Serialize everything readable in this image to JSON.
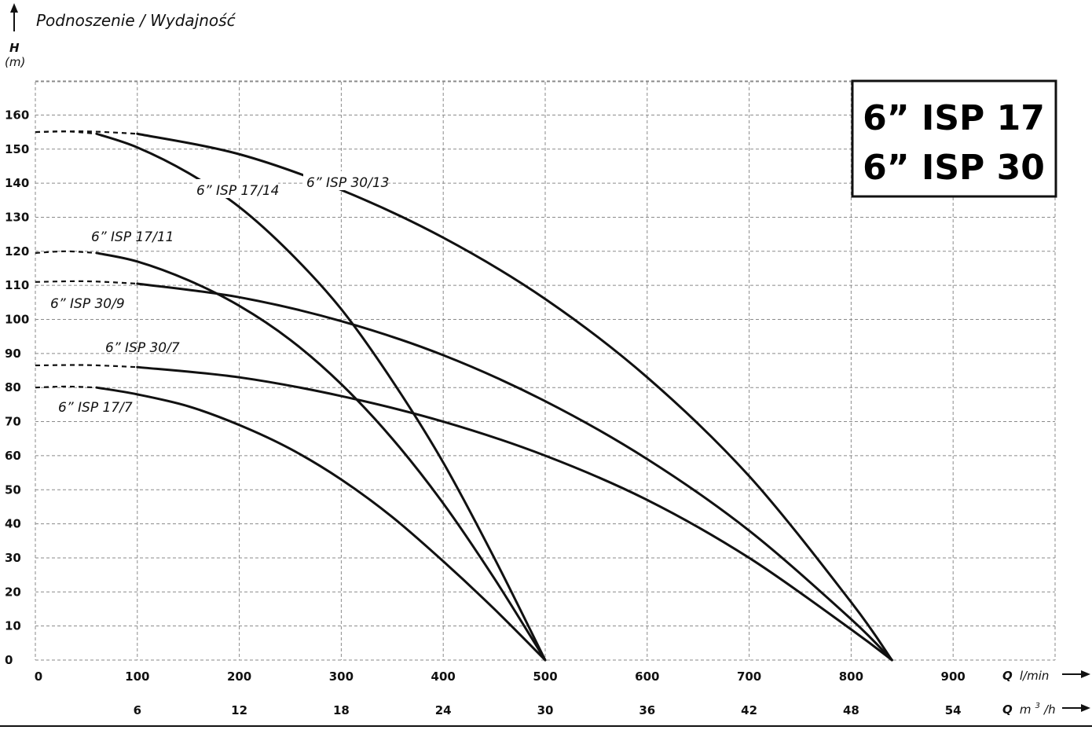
{
  "header": {
    "title": "Podnoszenie / Wydajność",
    "h_symbol": "H",
    "h_unit": "(m)"
  },
  "model_box": {
    "line1": "6” ISP 17",
    "line2": "6” ISP 30"
  },
  "chart_data": {
    "type": "line",
    "title": "Podnoszenie / Wydajność",
    "ylabel": "H (m)",
    "xlabel": "Q l/min",
    "xlabel_secondary": "Q m3/h",
    "x_axis_q": "Q",
    "x_axis_unit": "l/min",
    "x2_axis_q": "Q",
    "x2_axis_unit_base": "m",
    "x2_axis_unit_sup": "3",
    "x2_axis_unit_tail": "/h",
    "xlim": [
      0,
      1000
    ],
    "ylim": [
      0,
      170
    ],
    "grid": true,
    "x_ticks": [
      0,
      100,
      200,
      300,
      400,
      500,
      600,
      700,
      800,
      900
    ],
    "y_ticks": [
      0,
      10,
      20,
      30,
      40,
      50,
      60,
      70,
      80,
      90,
      100,
      110,
      120,
      130,
      140,
      150,
      160
    ],
    "x2_ticks": [
      6,
      12,
      18,
      24,
      30,
      36,
      42,
      48,
      54
    ],
    "series": [
      {
        "name": "6” ISP 17/14",
        "dashed_x": [
          0,
          30,
          60
        ],
        "dashed_y": [
          155,
          155.2,
          154.5
        ],
        "x": [
          60,
          100,
          150,
          200,
          250,
          300,
          350,
          400,
          450,
          500
        ],
        "y": [
          154.5,
          150.5,
          143,
          133,
          119.5,
          103,
          82,
          58,
          30,
          0
        ]
      },
      {
        "name": "6” ISP 30/13",
        "dashed_x": [
          0,
          50,
          100
        ],
        "dashed_y": [
          155,
          155.2,
          154.5
        ],
        "x": [
          100,
          200,
          300,
          400,
          500,
          600,
          700,
          800,
          840
        ],
        "y": [
          154.5,
          148.5,
          138,
          124,
          106,
          83,
          54,
          17,
          0
        ]
      },
      {
        "name": "6” ISP 17/11",
        "dashed_x": [
          0,
          30,
          60
        ],
        "dashed_y": [
          119.5,
          120,
          119.5
        ],
        "x": [
          60,
          100,
          150,
          200,
          250,
          300,
          350,
          400,
          450,
          500
        ],
        "y": [
          119.5,
          117,
          111.5,
          104,
          94,
          81,
          65,
          46,
          24,
          0
        ]
      },
      {
        "name": "6” ISP 30/9",
        "dashed_x": [
          0,
          50,
          100
        ],
        "dashed_y": [
          111,
          111.2,
          110.5
        ],
        "x": [
          100,
          200,
          300,
          400,
          500,
          600,
          700,
          800,
          840
        ],
        "y": [
          110.5,
          106.5,
          99.5,
          89.5,
          76,
          59,
          38,
          12,
          0
        ]
      },
      {
        "name": "6” ISP 30/7",
        "dashed_x": [
          0,
          50,
          100
        ],
        "dashed_y": [
          86.5,
          86.6,
          86
        ],
        "x": [
          100,
          200,
          300,
          400,
          500,
          600,
          700,
          800,
          840
        ],
        "y": [
          86,
          83,
          77.5,
          70,
          60,
          47,
          30,
          9,
          0
        ]
      },
      {
        "name": "6” ISP 17/7",
        "dashed_x": [
          0,
          30,
          60
        ],
        "dashed_y": [
          80,
          80.3,
          80
        ],
        "x": [
          60,
          100,
          150,
          200,
          250,
          300,
          350,
          400,
          450,
          500
        ],
        "y": [
          80,
          78,
          74.5,
          69,
          62,
          53,
          42,
          29,
          15,
          0
        ]
      }
    ]
  }
}
